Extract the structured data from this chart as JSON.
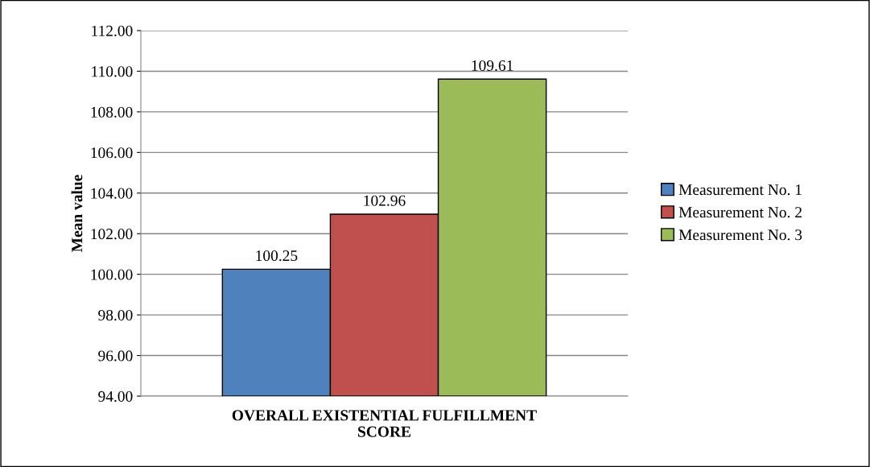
{
  "chart_data": {
    "type": "bar",
    "ylabel": "Mean value",
    "categories": [
      "OVERALL EXISTENTIAL FULFILLMENT SCORE"
    ],
    "series": [
      {
        "name": "Measurement No. 1",
        "color": "#4f81bd",
        "values": [
          100.25
        ]
      },
      {
        "name": "Measurement No. 2",
        "color": "#c0504d",
        "values": [
          102.96
        ]
      },
      {
        "name": "Measurement No. 3",
        "color": "#9bbb59",
        "values": [
          109.61
        ]
      }
    ],
    "ylim": [
      94,
      112
    ],
    "yticks": [
      {
        "value": 94,
        "label": "94.00"
      },
      {
        "value": 96,
        "label": "96.00"
      },
      {
        "value": 98,
        "label": "98.00"
      },
      {
        "value": 100,
        "label": "100.00"
      },
      {
        "value": 102,
        "label": "102.00"
      },
      {
        "value": 104,
        "label": "104.00"
      },
      {
        "value": 106,
        "label": "106.00"
      },
      {
        "value": 108,
        "label": "108.00"
      },
      {
        "value": 110,
        "label": "110.00"
      },
      {
        "value": 112,
        "label": "112.00"
      }
    ],
    "grid": "y",
    "legend": "right",
    "data_labels": true
  }
}
